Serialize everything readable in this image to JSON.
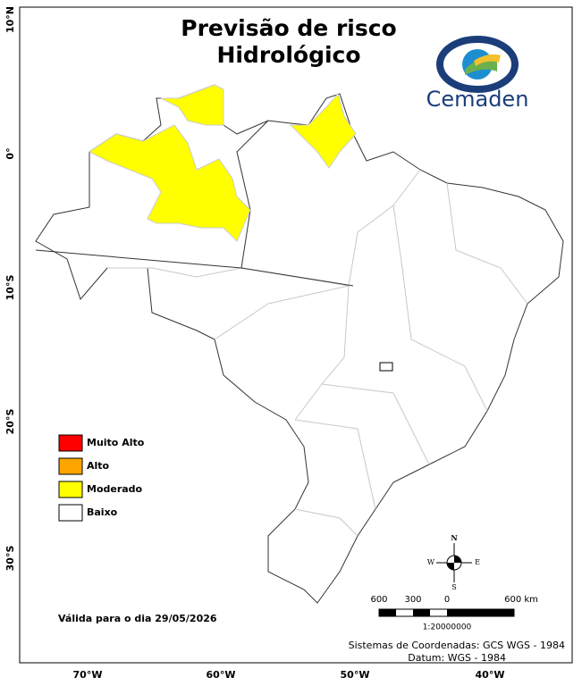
{
  "title": [
    "Previsão de risco",
    "Hidrológico"
  ],
  "logo": "Cemaden",
  "legend": [
    {
      "label": "Muito Alto",
      "color": "#ff0000"
    },
    {
      "label": "Alto",
      "color": "#ffa500"
    },
    {
      "label": "Moderado",
      "color": "#ffff00"
    },
    {
      "label": "Baixo",
      "color": "#ffffff"
    }
  ],
  "graticule": {
    "lat": [
      "10°N",
      "0°",
      "10°S",
      "20°S",
      "30°S"
    ],
    "lon": [
      "70°W",
      "60°W",
      "50°W",
      "40°W"
    ]
  },
  "validity": "Válida para o dia 29/05/2026",
  "scale": {
    "labels": [
      "600",
      "300",
      "0",
      "600 km"
    ],
    "ratio": "1:20000000"
  },
  "compass": [
    "N",
    "S",
    "E",
    "W"
  ],
  "footer": [
    "Sistemas de Coordenadas: GCS WGS - 1984",
    "Datum: WGS - 1984"
  ]
}
